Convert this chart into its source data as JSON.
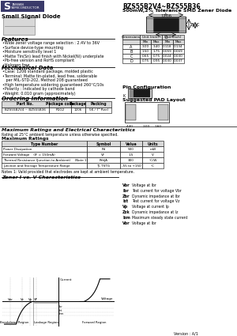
{
  "title": "BZS55B2V4~BZS55B36",
  "subtitle": "500mW,2% Tolerance SMD Zener Diode",
  "category": "Small Signal Diode",
  "bg_color": "#ffffff",
  "features_title": "Features",
  "features": [
    "•Wide zener voltage range selection : 2.4V to 36V",
    "•Surface device-type mounting",
    "•Moisture sensitivity level 1",
    "•Matte Tin(Sn) lead finish with Nickel(Ni) underplate",
    "•Pb-free version and RoHS compliant",
    "•Halogen free"
  ],
  "mech_title": "Mechanical Data",
  "mech_data": [
    "•Case: 1206 standard package, molded plastic",
    "•Terminal: Matte tin-plated, lead free, solderable",
    "   per MIL-STD-202, Method 208 guaranteed",
    "•High temperature soldering guaranteed 260°C/10s",
    "•Polarity : Indicated by cathode band",
    "•Weight: 0.010 gram (approximately)"
  ],
  "order_title": "Ordering Information",
  "order_headers": [
    "Part No.",
    "Package code",
    "Package",
    "Packing"
  ],
  "order_row": [
    "BZS55B2V4 ~ BZS55B36",
    "R1G2",
    "1206",
    "5K / 7\" Reel"
  ],
  "dim_title": "1206",
  "dim_rows": [
    [
      "A",
      "3.00",
      "3.40",
      "0.118",
      "0.134"
    ],
    [
      "B",
      "1.50",
      "1.75",
      "0.059",
      "0.069"
    ],
    [
      "C",
      "0.65",
      "0.75",
      "0.024",
      "0.030"
    ],
    [
      "D",
      "0.75",
      "0.95",
      "0.030",
      "0.037"
    ]
  ],
  "pin_title": "Pin Configuration",
  "pad_title": "Suggested PAD Layout",
  "max_rat_title": "Maximum Ratings and Electrical Characteristics",
  "max_rat_note": "Rating at 25°C ambient temperature unless otherwise specified.",
  "max_ratings_title": "Maximum Ratings",
  "max_rat_headers": [
    "Type Number",
    "Symbol",
    "Value",
    "Units"
  ],
  "max_rat_rows": [
    [
      "Power Dissipation",
      "Pd",
      "500",
      "mW"
    ],
    [
      "Forward Voltage    (IF = 150mA)",
      "VF",
      "1.5",
      "V"
    ],
    [
      "Thermal Resistance (Junction to Ambient)    (Note 1)",
      "RthJA",
      "300",
      "°C/W"
    ],
    [
      "Junction and Storage Temperature Range",
      "TJ, TSTG",
      "-55 to +150",
      "°C"
    ]
  ],
  "note": "Notes 1: Valid provided that electrodes are kept at ambient temperature.",
  "zener_title": "Zener I vs. V Characteristics",
  "legend_items": [
    [
      "Vbr",
      "Voltage at Ibr"
    ],
    [
      "Ibr",
      "Test current for voltage Vbr"
    ],
    [
      "Zbr",
      "Dynamic impedance at Ibr"
    ],
    [
      "Izt",
      "Test current for voltage Vz"
    ],
    [
      "Vp",
      "Voltage at current Ip"
    ],
    [
      "Zzk",
      "Dynamic impedance at Iz"
    ],
    [
      "Izm",
      "Maximum steady state current"
    ],
    [
      "Vbr",
      "Voltage at Ibr"
    ]
  ],
  "version": "Version : A/1"
}
